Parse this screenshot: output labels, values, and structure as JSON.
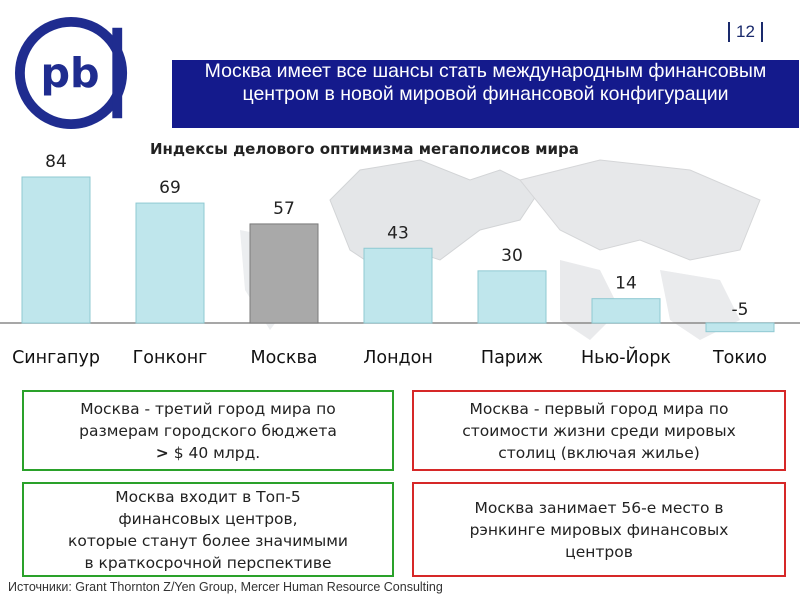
{
  "header": {
    "page_number": "12",
    "title": "Москва имеет все шансы стать международным финансовым центром в новой мировой финансовой конфигурации"
  },
  "colors": {
    "title_bar": "#141a8c",
    "bar": "#bfe6ec",
    "bar_highlight": "#a9a9a9",
    "box_green_border": "#2aa12a",
    "box_red_border": "#d62828"
  },
  "chart_data": {
    "type": "bar",
    "title": "Индексы делового оптимизма мегаполисов мира",
    "categories": [
      "Сингапур",
      "Гонконг",
      "Москва",
      "Лондон",
      "Париж",
      "Нью-Йорк",
      "Токио"
    ],
    "values": [
      84,
      69,
      57,
      43,
      30,
      14,
      -5
    ],
    "value_labels": [
      "84",
      "69",
      "57",
      "43",
      "30",
      "14",
      "-5"
    ],
    "highlight_category": "Москва",
    "xlabel": "",
    "ylabel": "",
    "ylim": [
      -5,
      84
    ],
    "grid": false,
    "legend": "none"
  },
  "boxes": {
    "box1": {
      "line1": "Москва - третий город мира по",
      "line2": "размерам городского бюджета",
      "prefix": ">",
      "line3": " $ 40 млрд."
    },
    "box2": {
      "line1": "Москва - первый город мира по",
      "line2": "стоимости жизни среди мировых",
      "line3": "столиц (включая жилье)"
    },
    "box3": {
      "line1": "Москва входит в Топ-5",
      "line2": "финансовых центров,",
      "line3": "которые станут более значимыми",
      "line4": "в краткосрочной перспективе"
    },
    "box4": {
      "line1": "Москва занимает 56-е место в",
      "line2": "рэнкинге мировых финансовых",
      "line3": "центров"
    }
  },
  "footer": {
    "sources": "Источники: Grant Thornton Z/Yen Group, Mercer Human Resource Consulting"
  }
}
